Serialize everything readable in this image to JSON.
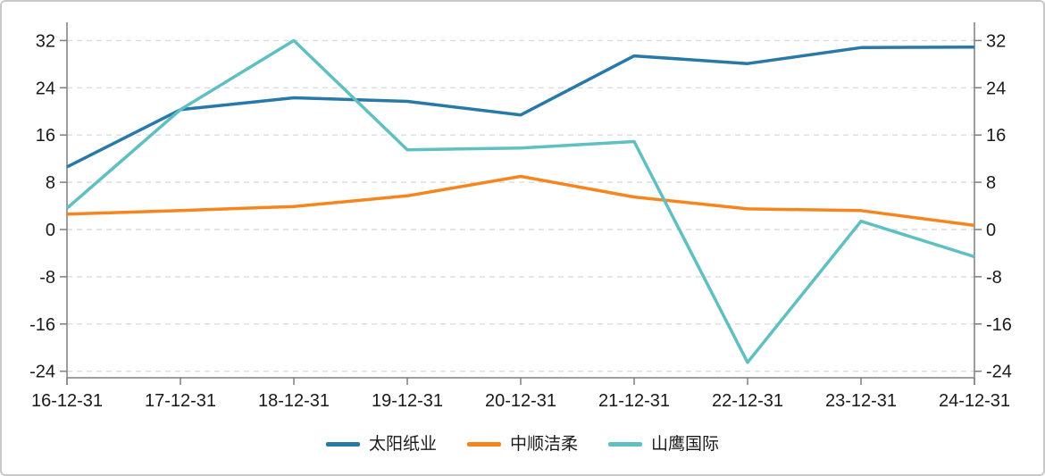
{
  "chart_data": {
    "type": "line",
    "title": "",
    "xlabel": "",
    "ylabel": "",
    "categories": [
      "16-12-31",
      "17-12-31",
      "18-12-31",
      "19-12-31",
      "20-12-31",
      "21-12-31",
      "22-12-31",
      "23-12-31",
      "24-12-31"
    ],
    "series": [
      {
        "name": "太阳纸业",
        "color": "#2878a8",
        "values": [
          10.6,
          20.3,
          22.3,
          21.7,
          19.4,
          29.4,
          28.1,
          30.8,
          30.9
        ]
      },
      {
        "name": "中顺洁柔",
        "color": "#f5861f",
        "values": [
          2.6,
          3.2,
          3.9,
          5.7,
          9.0,
          5.5,
          3.5,
          3.2,
          0.7
        ]
      },
      {
        "name": "山鹰国际",
        "color": "#5fbfc1",
        "values": [
          3.6,
          20.3,
          32.0,
          13.5,
          13.8,
          14.9,
          -22.5,
          1.4,
          -4.6
        ]
      }
    ],
    "y_ticks": [
      32,
      24,
      16,
      8,
      0,
      -8,
      -16,
      -24
    ],
    "ylim": [
      -24,
      32
    ],
    "grid": "horizontal-dashed",
    "legend_position": "bottom",
    "axes": {
      "left": true,
      "right": true,
      "bottom": true,
      "mirrored_y_labels": true
    }
  },
  "styles": {
    "axis_color": "#7f7f7f",
    "grid_color": "#dcdcdc",
    "text_color": "#1a1a1a",
    "background": "#ffffff",
    "border_color": "#c8c8c8"
  }
}
